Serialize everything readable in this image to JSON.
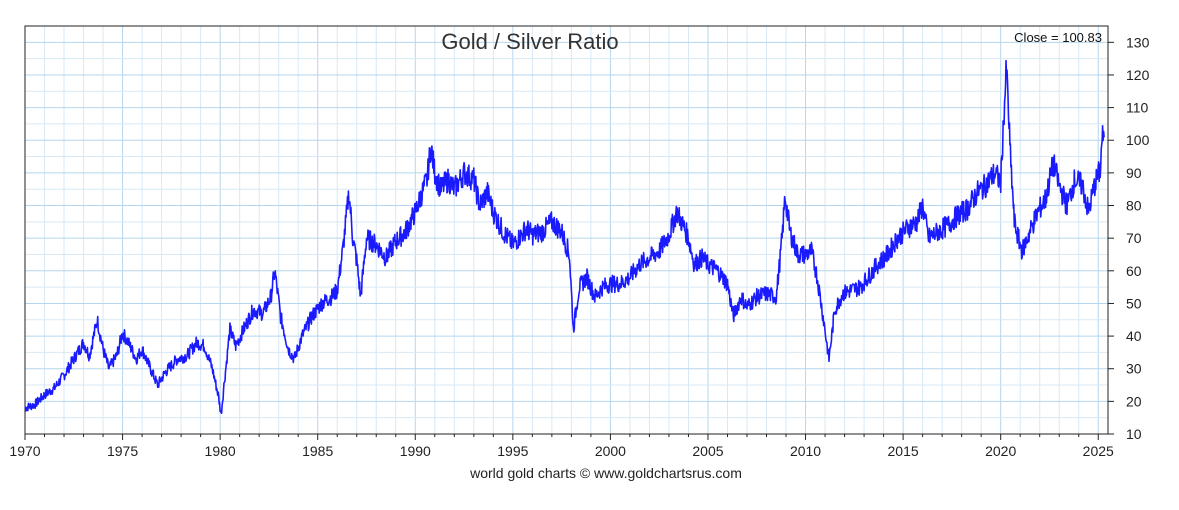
{
  "chart_data": {
    "type": "line",
    "title": "Gold  /  Silver Ratio",
    "close_label": "Close = 100.83",
    "footer": "world gold charts © www.goldchartsrus.com",
    "xlim": [
      1970,
      2025.5
    ],
    "ylim": [
      10,
      135
    ],
    "x_ticks": [
      1970,
      1975,
      1980,
      1985,
      1990,
      1995,
      2000,
      2005,
      2010,
      2015,
      2020,
      2025
    ],
    "y_ticks": [
      10,
      20,
      30,
      40,
      50,
      60,
      70,
      80,
      90,
      100,
      110,
      120,
      130
    ],
    "series": [
      {
        "name": "Gold/Silver Ratio",
        "color": "#1a1aff",
        "points": [
          [
            1970.0,
            18
          ],
          [
            1970.5,
            19
          ],
          [
            1971.0,
            22
          ],
          [
            1971.5,
            24
          ],
          [
            1972.0,
            28
          ],
          [
            1972.5,
            33
          ],
          [
            1973.0,
            38
          ],
          [
            1973.3,
            34
          ],
          [
            1973.7,
            45
          ],
          [
            1974.0,
            36
          ],
          [
            1974.3,
            30
          ],
          [
            1974.7,
            34
          ],
          [
            1975.0,
            41
          ],
          [
            1975.3,
            38
          ],
          [
            1975.7,
            33
          ],
          [
            1976.0,
            36
          ],
          [
            1976.5,
            29
          ],
          [
            1976.8,
            25
          ],
          [
            1977.2,
            29
          ],
          [
            1977.8,
            33
          ],
          [
            1978.3,
            34
          ],
          [
            1978.8,
            38
          ],
          [
            1979.2,
            37
          ],
          [
            1979.6,
            30
          ],
          [
            1979.9,
            22
          ],
          [
            1980.05,
            16
          ],
          [
            1980.2,
            25
          ],
          [
            1980.5,
            42
          ],
          [
            1980.8,
            37
          ],
          [
            1981.2,
            42
          ],
          [
            1981.7,
            48
          ],
          [
            1982.2,
            47
          ],
          [
            1982.6,
            52
          ],
          [
            1982.8,
            60
          ],
          [
            1983.1,
            46
          ],
          [
            1983.5,
            36
          ],
          [
            1983.8,
            33
          ],
          [
            1984.2,
            40
          ],
          [
            1984.7,
            46
          ],
          [
            1985.2,
            50
          ],
          [
            1985.7,
            52
          ],
          [
            1986.0,
            54
          ],
          [
            1986.3,
            67
          ],
          [
            1986.6,
            84
          ],
          [
            1986.8,
            70
          ],
          [
            1987.0,
            63
          ],
          [
            1987.2,
            52
          ],
          [
            1987.5,
            70
          ],
          [
            1988.0,
            68
          ],
          [
            1988.5,
            64
          ],
          [
            1989.0,
            69
          ],
          [
            1989.5,
            72
          ],
          [
            1990.0,
            78
          ],
          [
            1990.3,
            83
          ],
          [
            1990.6,
            88
          ],
          [
            1990.8,
            98
          ],
          [
            1991.0,
            90
          ],
          [
            1991.3,
            85
          ],
          [
            1991.7,
            88
          ],
          [
            1992.0,
            85
          ],
          [
            1992.5,
            90
          ],
          [
            1993.0,
            88
          ],
          [
            1993.3,
            80
          ],
          [
            1993.7,
            84
          ],
          [
            1994.0,
            78
          ],
          [
            1994.5,
            72
          ],
          [
            1995.0,
            68
          ],
          [
            1995.3,
            70
          ],
          [
            1995.7,
            73
          ],
          [
            1996.0,
            71
          ],
          [
            1996.5,
            72
          ],
          [
            1997.0,
            75
          ],
          [
            1997.5,
            72
          ],
          [
            1997.9,
            65
          ],
          [
            1998.1,
            42
          ],
          [
            1998.4,
            55
          ],
          [
            1998.8,
            58
          ],
          [
            1999.2,
            52
          ],
          [
            1999.6,
            55
          ],
          [
            2000.0,
            56
          ],
          [
            2000.5,
            56
          ],
          [
            2001.0,
            58
          ],
          [
            2001.5,
            62
          ],
          [
            2002.0,
            64
          ],
          [
            2002.5,
            66
          ],
          [
            2003.0,
            71
          ],
          [
            2003.4,
            78
          ],
          [
            2003.8,
            73
          ],
          [
            2004.0,
            70
          ],
          [
            2004.3,
            62
          ],
          [
            2004.7,
            64
          ],
          [
            2005.0,
            62
          ],
          [
            2005.5,
            60
          ],
          [
            2006.0,
            56
          ],
          [
            2006.3,
            46
          ],
          [
            2006.7,
            52
          ],
          [
            2007.0,
            49
          ],
          [
            2007.5,
            52
          ],
          [
            2008.0,
            53
          ],
          [
            2008.5,
            52
          ],
          [
            2008.8,
            70
          ],
          [
            2008.95,
            83
          ],
          [
            2009.2,
            72
          ],
          [
            2009.6,
            65
          ],
          [
            2010.0,
            65
          ],
          [
            2010.3,
            66
          ],
          [
            2010.6,
            58
          ],
          [
            2010.9,
            46
          ],
          [
            2011.2,
            33
          ],
          [
            2011.5,
            48
          ],
          [
            2011.9,
            53
          ],
          [
            2012.3,
            54
          ],
          [
            2012.8,
            55
          ],
          [
            2013.2,
            58
          ],
          [
            2013.7,
            62
          ],
          [
            2014.2,
            65
          ],
          [
            2014.7,
            70
          ],
          [
            2015.2,
            73
          ],
          [
            2015.7,
            75
          ],
          [
            2016.0,
            80
          ],
          [
            2016.3,
            70
          ],
          [
            2016.8,
            72
          ],
          [
            2017.3,
            74
          ],
          [
            2017.8,
            77
          ],
          [
            2018.3,
            79
          ],
          [
            2018.8,
            84
          ],
          [
            2019.2,
            86
          ],
          [
            2019.7,
            90
          ],
          [
            2020.0,
            87
          ],
          [
            2020.2,
            112
          ],
          [
            2020.3,
            122
          ],
          [
            2020.5,
            95
          ],
          [
            2020.7,
            75
          ],
          [
            2020.9,
            70
          ],
          [
            2021.1,
            66
          ],
          [
            2021.5,
            72
          ],
          [
            2021.9,
            78
          ],
          [
            2022.3,
            82
          ],
          [
            2022.7,
            93
          ],
          [
            2023.0,
            86
          ],
          [
            2023.4,
            80
          ],
          [
            2023.8,
            88
          ],
          [
            2024.2,
            86
          ],
          [
            2024.5,
            78
          ],
          [
            2024.8,
            86
          ],
          [
            2025.1,
            91
          ],
          [
            2025.2,
            101
          ],
          [
            2025.3,
            100.83
          ]
        ]
      }
    ]
  }
}
